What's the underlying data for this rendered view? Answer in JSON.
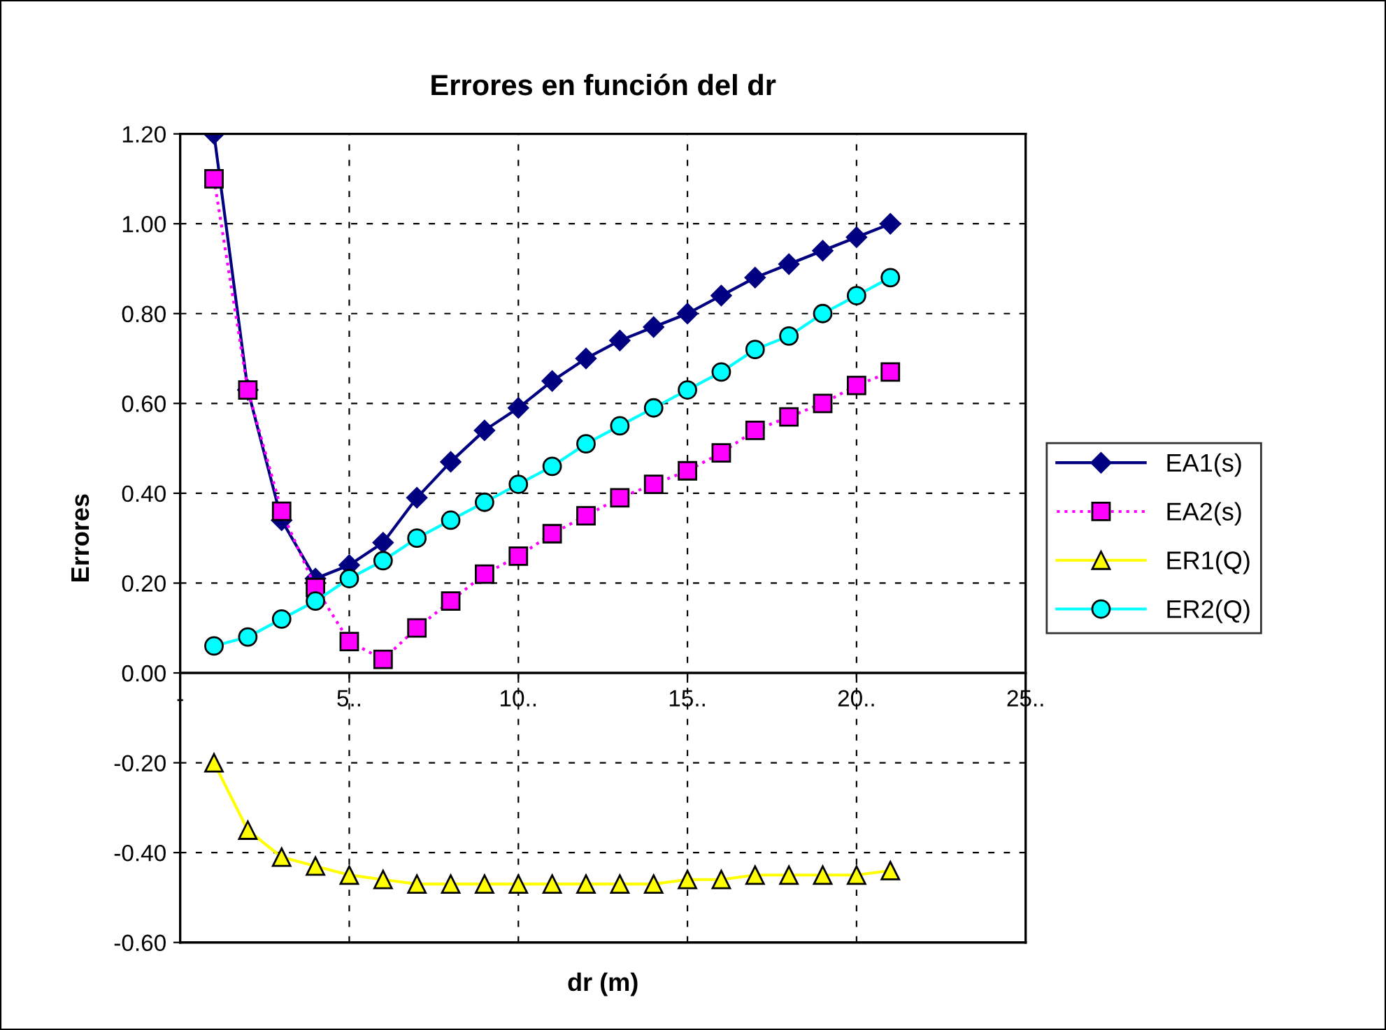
{
  "chart_data": {
    "type": "line",
    "title": "Errores en función del dr",
    "xlabel": "dr (m)",
    "ylabel": "Errores",
    "x": [
      1,
      2,
      3,
      4,
      5,
      6,
      7,
      8,
      9,
      10,
      11,
      12,
      13,
      14,
      15,
      16,
      17,
      18,
      19,
      20,
      21
    ],
    "series": [
      {
        "name": "EA1(s)",
        "color": "#000080",
        "marker": "diamond",
        "line_style": "solid",
        "values": [
          1.2,
          0.63,
          0.34,
          0.21,
          0.24,
          0.29,
          0.39,
          0.47,
          0.54,
          0.59,
          0.65,
          0.7,
          0.74,
          0.77,
          0.8,
          0.84,
          0.88,
          0.91,
          0.94,
          0.97,
          1.0
        ]
      },
      {
        "name": "EA2(s)",
        "color": "#ff00ff",
        "marker": "square",
        "line_style": "dotted",
        "values": [
          1.1,
          0.63,
          0.36,
          0.19,
          0.07,
          0.03,
          0.1,
          0.16,
          0.22,
          0.26,
          0.31,
          0.35,
          0.39,
          0.42,
          0.45,
          0.49,
          0.54,
          0.57,
          0.6,
          0.64,
          0.67
        ]
      },
      {
        "name": "ER1(Q)",
        "color": "#ffff00",
        "marker": "triangle",
        "line_style": "solid",
        "values": [
          -0.2,
          -0.35,
          -0.41,
          -0.43,
          -0.45,
          -0.46,
          -0.47,
          -0.47,
          -0.47,
          -0.47,
          -0.47,
          -0.47,
          -0.47,
          -0.47,
          -0.46,
          -0.46,
          -0.45,
          -0.45,
          -0.45,
          -0.45,
          -0.44
        ]
      },
      {
        "name": "ER2(Q)",
        "color": "#00ffff",
        "marker": "circle",
        "line_style": "solid",
        "values": [
          0.06,
          0.08,
          0.12,
          0.16,
          0.21,
          0.25,
          0.3,
          0.34,
          0.38,
          0.42,
          0.46,
          0.51,
          0.55,
          0.59,
          0.63,
          0.67,
          0.72,
          0.75,
          0.8,
          0.84,
          0.88
        ]
      }
    ],
    "xlim": [
      0,
      25
    ],
    "xticks": [
      {
        "value": 0,
        "label": "-"
      },
      {
        "value": 5,
        "label": "5.."
      },
      {
        "value": 10,
        "label": "10.."
      },
      {
        "value": 15,
        "label": "15.."
      },
      {
        "value": 20,
        "label": "20.."
      },
      {
        "value": 25,
        "label": "25.."
      }
    ],
    "ylim": [
      -0.6,
      1.2
    ],
    "yticks": [
      {
        "value": -0.6,
        "label": "-0.60"
      },
      {
        "value": -0.4,
        "label": "-0.40"
      },
      {
        "value": -0.2,
        "label": "-0.20"
      },
      {
        "value": 0,
        "label": "0.00"
      },
      {
        "value": 0.2,
        "label": "0.20"
      },
      {
        "value": 0.4,
        "label": "0.40"
      },
      {
        "value": 0.6,
        "label": "0.60"
      },
      {
        "value": 0.8,
        "label": "0.80"
      },
      {
        "value": 1.0,
        "label": "1.00"
      },
      {
        "value": 1.2,
        "label": "1.20"
      }
    ],
    "grid": true,
    "legend": "right"
  }
}
